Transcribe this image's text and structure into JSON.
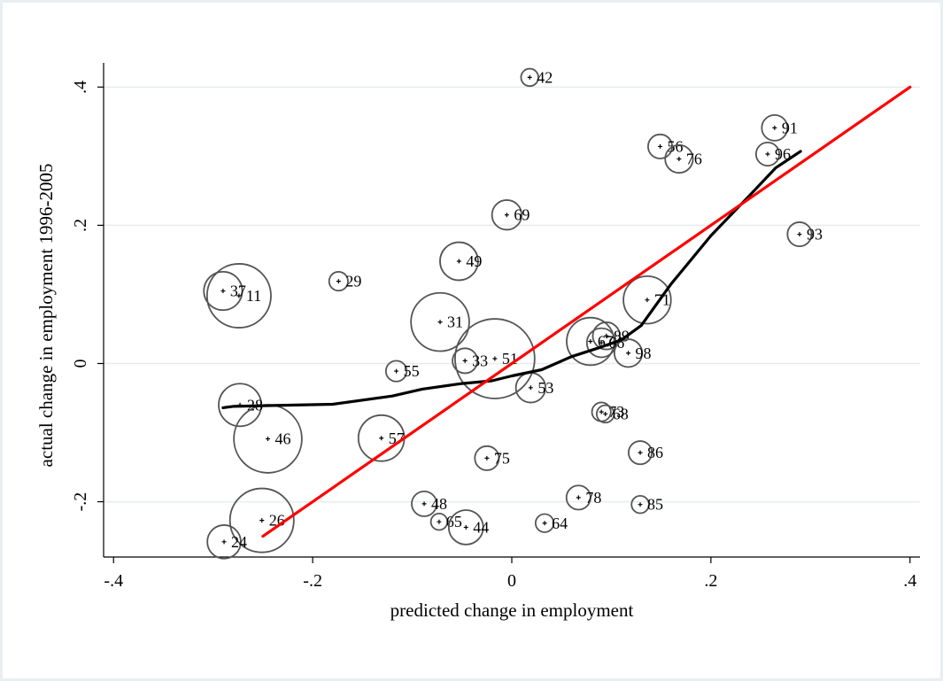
{
  "chart_data": {
    "type": "scatter",
    "title": "",
    "xlabel": "predicted change in employment",
    "ylabel": "actual change in employment 1996-2005",
    "xlim": [
      -0.41,
      0.41
    ],
    "ylim": [
      -0.28,
      0.435
    ],
    "xticks": [
      -0.4,
      -0.2,
      0,
      0.2,
      0.4
    ],
    "xtick_labels": [
      "-.4",
      "-.2",
      "0",
      ".2",
      ".4"
    ],
    "yticks": [
      -0.2,
      0,
      0.2,
      0.4
    ],
    "ytick_labels": [
      "-.2",
      "0",
      ".2",
      ".4"
    ],
    "grid": true,
    "points": [
      {
        "label": "42",
        "x": 0.018,
        "y": 0.414,
        "w": 0.2
      },
      {
        "label": "91",
        "x": 0.264,
        "y": 0.341,
        "w": 1.0
      },
      {
        "label": "56",
        "x": 0.149,
        "y": 0.314,
        "w": 0.8
      },
      {
        "label": "96",
        "x": 0.257,
        "y": 0.303,
        "w": 0.7
      },
      {
        "label": "76",
        "x": 0.168,
        "y": 0.296,
        "w": 1.3
      },
      {
        "label": "69",
        "x": -0.005,
        "y": 0.215,
        "w": 1.6
      },
      {
        "label": "93",
        "x": 0.289,
        "y": 0.187,
        "w": 0.8
      },
      {
        "label": "49",
        "x": -0.053,
        "y": 0.148,
        "w": 3.3
      },
      {
        "label": "29",
        "x": -0.174,
        "y": 0.119,
        "w": 0.3
      },
      {
        "label": "37",
        "x": -0.29,
        "y": 0.105,
        "w": 3.4
      },
      {
        "label": "11",
        "x": -0.274,
        "y": 0.098,
        "w": 12.5
      },
      {
        "label": "71",
        "x": 0.136,
        "y": 0.092,
        "w": 6.0
      },
      {
        "label": "31",
        "x": -0.072,
        "y": 0.06,
        "w": 10.0
      },
      {
        "label": "89",
        "x": 0.095,
        "y": 0.04,
        "w": 1.2
      },
      {
        "label": "67",
        "x": 0.079,
        "y": 0.032,
        "w": 6.0
      },
      {
        "label": "66",
        "x": 0.09,
        "y": 0.03,
        "w": 1.5
      },
      {
        "label": "98",
        "x": 0.117,
        "y": 0.015,
        "w": 1.3
      },
      {
        "label": "33",
        "x": -0.047,
        "y": 0.004,
        "w": 0.9
      },
      {
        "label": "51",
        "x": -0.017,
        "y": 0.007,
        "w": 21.0
      },
      {
        "label": "55",
        "x": -0.116,
        "y": -0.011,
        "w": 0.45
      },
      {
        "label": "53",
        "x": 0.019,
        "y": -0.035,
        "w": 1.6
      },
      {
        "label": "28",
        "x": -0.273,
        "y": -0.06,
        "w": 4.5
      },
      {
        "label": "73",
        "x": 0.09,
        "y": -0.07,
        "w": 0.3
      },
      {
        "label": "68",
        "x": 0.094,
        "y": -0.073,
        "w": 0.2
      },
      {
        "label": "46",
        "x": -0.245,
        "y": -0.109,
        "w": 14.5
      },
      {
        "label": "57",
        "x": -0.131,
        "y": -0.108,
        "w": 5.5
      },
      {
        "label": "86",
        "x": 0.129,
        "y": -0.129,
        "w": 0.7
      },
      {
        "label": "75",
        "x": -0.025,
        "y": -0.137,
        "w": 0.8
      },
      {
        "label": "78",
        "x": 0.067,
        "y": -0.194,
        "w": 0.8
      },
      {
        "label": "48",
        "x": -0.088,
        "y": -0.203,
        "w": 0.9
      },
      {
        "label": "85",
        "x": 0.129,
        "y": -0.204,
        "w": 0.2
      },
      {
        "label": "26",
        "x": -0.251,
        "y": -0.227,
        "w": 12.5
      },
      {
        "label": "65",
        "x": -0.073,
        "y": -0.229,
        "w": 0.15
      },
      {
        "label": "64",
        "x": 0.033,
        "y": -0.231,
        "w": 0.25
      },
      {
        "label": "44",
        "x": -0.046,
        "y": -0.237,
        "w": 2.5
      },
      {
        "label": "24",
        "x": -0.289,
        "y": -0.258,
        "w": 2.3
      }
    ],
    "lines": [
      {
        "name": "",
        "color": "#000000",
        "points": [
          [
            -0.29,
            -0.064
          ],
          [
            -0.28,
            -0.062
          ],
          [
            -0.25,
            -0.061
          ],
          [
            -0.18,
            -0.059
          ],
          [
            -0.12,
            -0.047
          ],
          [
            -0.09,
            -0.037
          ],
          [
            -0.05,
            -0.029
          ],
          [
            -0.02,
            -0.025
          ],
          [
            0.0,
            -0.018
          ],
          [
            0.03,
            -0.009
          ],
          [
            0.06,
            0.01
          ],
          [
            0.09,
            0.024
          ],
          [
            0.11,
            0.034
          ],
          [
            0.13,
            0.055
          ],
          [
            0.16,
            0.115
          ],
          [
            0.2,
            0.185
          ],
          [
            0.24,
            0.245
          ],
          [
            0.265,
            0.283
          ],
          [
            0.29,
            0.307
          ]
        ]
      },
      {
        "name": "",
        "color": "#ff0000",
        "points": [
          [
            -0.25,
            -0.25
          ],
          [
            0.4,
            0.4
          ]
        ]
      }
    ],
    "legend": "none"
  }
}
